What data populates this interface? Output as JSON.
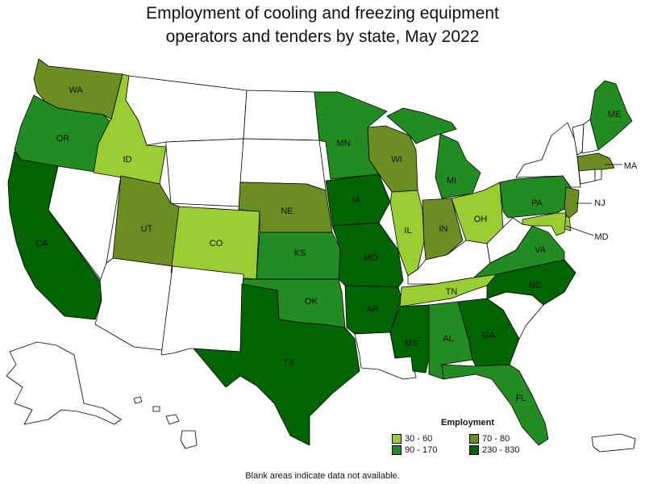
{
  "title_line1": "Employment of cooling and freezing equipment",
  "title_line2": "operators and tenders by state, May 2022",
  "legend": {
    "title": "Employment",
    "items": [
      {
        "label": "30 - 60",
        "color": "#9acd32"
      },
      {
        "label": "70 - 80",
        "color": "#6b8e23"
      },
      {
        "label": "90 - 170",
        "color": "#228b22"
      },
      {
        "label": "230 - 830",
        "color": "#006400"
      }
    ]
  },
  "footnote": "Blank areas indicate data not available.",
  "colors": {
    "c1": "#9acd32",
    "c2": "#6b8e23",
    "c3": "#228b22",
    "c4": "#006400",
    "blank": "#ffffff"
  },
  "states": {
    "WA": "WA",
    "OR": "OR",
    "CA": "CA",
    "ID": "ID",
    "UT": "UT",
    "CO": "CO",
    "NE": "NE",
    "KS": "KS",
    "OK": "OK",
    "TX": "TX",
    "MN": "MN",
    "IA": "IA",
    "MO": "MO",
    "AR": "AR",
    "WI": "WI",
    "IL": "IL",
    "MI": "MI",
    "IN": "IN",
    "OH": "OH",
    "TN": "TN",
    "MS": "MS",
    "AL": "AL",
    "GA": "GA",
    "FL": "FL",
    "NC": "NC",
    "VA": "VA",
    "PA": "PA",
    "NJ": "NJ",
    "MD": "MD",
    "MA": "MA",
    "ME": "ME"
  }
}
